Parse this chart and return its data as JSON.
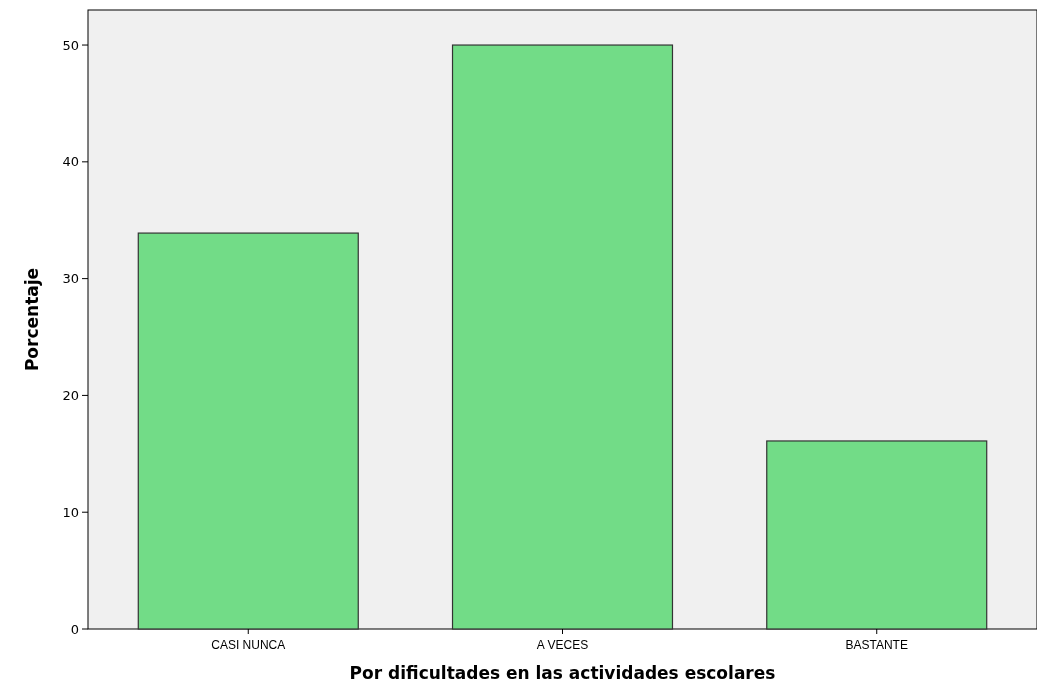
{
  "chart_data": {
    "type": "bar",
    "xlabel": "Por dificultades en las actividades escolares",
    "ylabel": "Porcentaje",
    "categories": [
      "CASI NUNCA",
      "A VECES",
      "BASTANTE"
    ],
    "values": [
      33.9,
      50,
      16.1
    ],
    "color": "#72dc87",
    "ylim": [
      0,
      53
    ],
    "yticks": [
      0,
      10,
      20,
      30,
      40,
      50
    ],
    "grid": false
  }
}
